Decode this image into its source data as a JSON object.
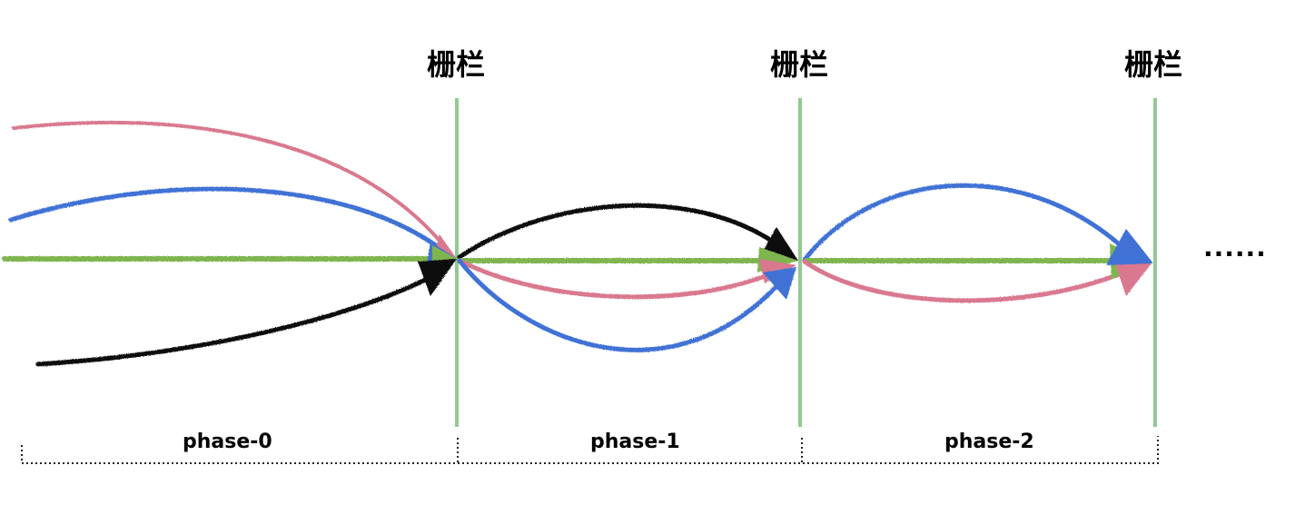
{
  "diagram": {
    "barriers": [
      {
        "label": "栅栏"
      },
      {
        "label": "栅栏"
      },
      {
        "label": "栅栏"
      }
    ],
    "phases": [
      {
        "label": "phase-0"
      },
      {
        "label": "phase-1"
      },
      {
        "label": "phase-2"
      }
    ],
    "continuation": "......",
    "colors": {
      "barrier": "#93c993",
      "green": "#7fb550",
      "pink": "#d9788e",
      "blue": "#3f72d6",
      "black": "#111111",
      "bracket": "#222222"
    }
  }
}
